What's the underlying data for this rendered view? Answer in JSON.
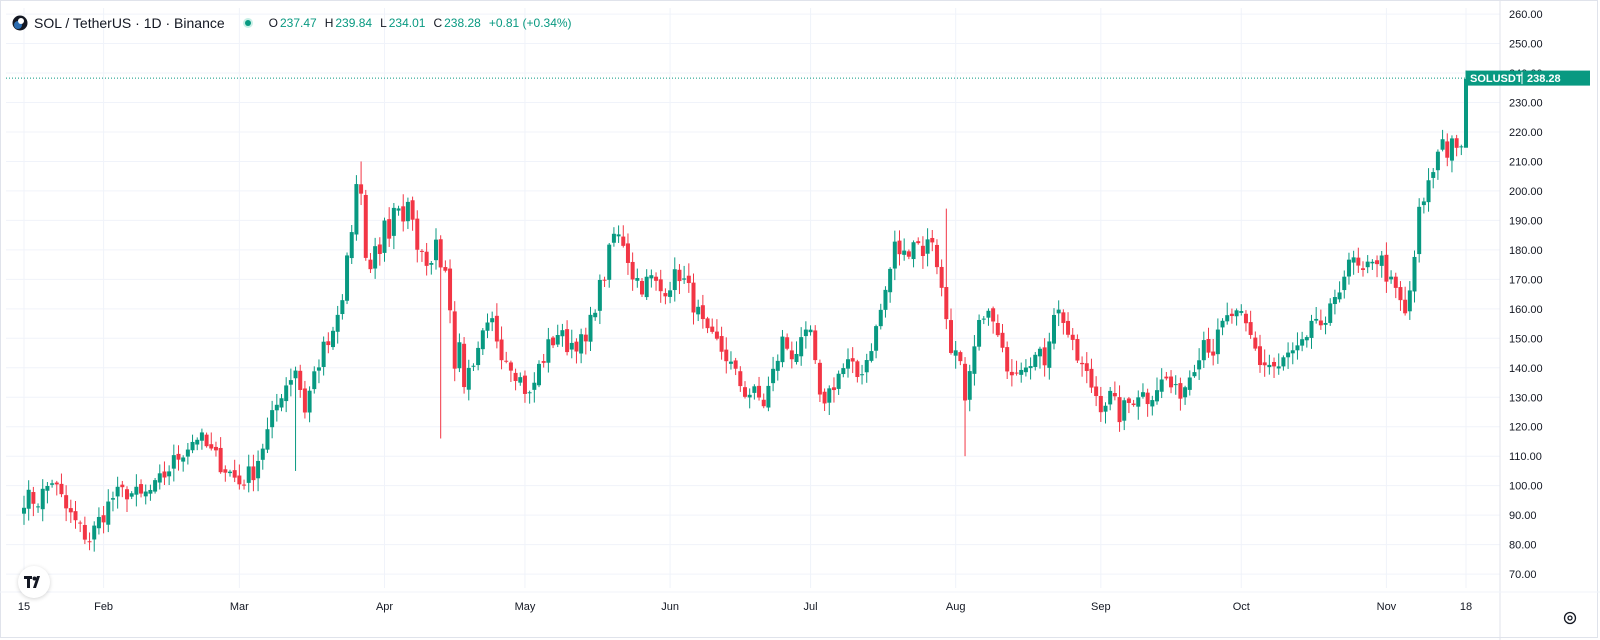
{
  "header": {
    "symbol": "SOL / TetherUS · 1D · Binance",
    "ohlc": [
      {
        "k": "O",
        "v": "237.47"
      },
      {
        "k": "H",
        "v": "239.84"
      },
      {
        "k": "L",
        "v": "234.01"
      },
      {
        "k": "C",
        "v": "238.28"
      }
    ],
    "change": "+0.81 (+0.34%)"
  },
  "price_label": {
    "ticker": "SOLUSDT",
    "value": "238.28"
  },
  "colors": {
    "up": "#089981",
    "down": "#f23645",
    "grid": "#f0f3fa",
    "axis_text": "#131722"
  },
  "icons": {
    "logo": "tradingview-logo-icon",
    "settings": "settings-icon",
    "symbol": "solana-logo-icon"
  },
  "chart_data": {
    "type": "candlestick",
    "title": "SOL / TetherUS · 1D · Binance",
    "ylim": [
      65,
      262
    ],
    "y_ticks": [
      260,
      250,
      240,
      230,
      220,
      210,
      200,
      190,
      180,
      170,
      160,
      150,
      140,
      130,
      120,
      110,
      100,
      90,
      80,
      70
    ],
    "y_tick_labels": [
      "260.00",
      "250.00",
      "240.00",
      "230.00",
      "220.00",
      "210.00",
      "200.00",
      "190.00",
      "180.00",
      "170.00",
      "160.00",
      "150.00",
      "140.00",
      "130.00",
      "120.00",
      "110.00",
      "100.00",
      "90.00",
      "80.00",
      "70.00"
    ],
    "x_tick_labels": [
      "15",
      "Feb",
      "Mar",
      "Apr",
      "May",
      "Jun",
      "Jul",
      "Aug",
      "Sep",
      "Oct",
      "Nov",
      "18"
    ],
    "x_tick_days": [
      0,
      17,
      46,
      77,
      107,
      138,
      168,
      199,
      230,
      260,
      291,
      308
    ],
    "last_price": 238.28,
    "grid": true,
    "anchors": [
      [
        0,
        96
      ],
      [
        3,
        95
      ],
      [
        6,
        102
      ],
      [
        9,
        92
      ],
      [
        12,
        85
      ],
      [
        14,
        82
      ],
      [
        16,
        88
      ],
      [
        19,
        96
      ],
      [
        22,
        98
      ],
      [
        25,
        96
      ],
      [
        28,
        99
      ],
      [
        31,
        106
      ],
      [
        34,
        112
      ],
      [
        37,
        117
      ],
      [
        40,
        111
      ],
      [
        43,
        106
      ],
      [
        46,
        101
      ],
      [
        49,
        105
      ],
      [
        52,
        118
      ],
      [
        55,
        132
      ],
      [
        58,
        140
      ],
      [
        60,
        126
      ],
      [
        62,
        138
      ],
      [
        64,
        146
      ],
      [
        66,
        150
      ],
      [
        67,
        157
      ],
      [
        68,
        162
      ],
      [
        69,
        178
      ],
      [
        70,
        186
      ],
      [
        71,
        201
      ],
      [
        72,
        196
      ],
      [
        73,
        178
      ],
      [
        74,
        172
      ],
      [
        75,
        183
      ],
      [
        76,
        178
      ],
      [
        77,
        191
      ],
      [
        78,
        185
      ],
      [
        79,
        195
      ],
      [
        80,
        192
      ],
      [
        81,
        187
      ],
      [
        82,
        199
      ],
      [
        83,
        188
      ],
      [
        84,
        183
      ],
      [
        86,
        177
      ],
      [
        88,
        180
      ],
      [
        90,
        172
      ],
      [
        91,
        162
      ],
      [
        92,
        140
      ],
      [
        93,
        148
      ],
      [
        94,
        136
      ],
      [
        96,
        138
      ],
      [
        98,
        150
      ],
      [
        100,
        155
      ],
      [
        102,
        146
      ],
      [
        104,
        142
      ],
      [
        106,
        136
      ],
      [
        108,
        130
      ],
      [
        110,
        140
      ],
      [
        112,
        147
      ],
      [
        114,
        152
      ],
      [
        116,
        148
      ],
      [
        118,
        149
      ],
      [
        120,
        148
      ],
      [
        122,
        162
      ],
      [
        124,
        172
      ],
      [
        126,
        185
      ],
      [
        128,
        183
      ],
      [
        130,
        172
      ],
      [
        132,
        168
      ],
      [
        134,
        170
      ],
      [
        136,
        166
      ],
      [
        138,
        169
      ],
      [
        140,
        172
      ],
      [
        142,
        166
      ],
      [
        144,
        158
      ],
      [
        146,
        150
      ],
      [
        148,
        148
      ],
      [
        150,
        144
      ],
      [
        152,
        137
      ],
      [
        154,
        132
      ],
      [
        156,
        131
      ],
      [
        158,
        128
      ],
      [
        160,
        138
      ],
      [
        162,
        149
      ],
      [
        164,
        145
      ],
      [
        166,
        147
      ],
      [
        168,
        152
      ],
      [
        170,
        128
      ],
      [
        172,
        132
      ],
      [
        174,
        138
      ],
      [
        176,
        141
      ],
      [
        178,
        137
      ],
      [
        180,
        143
      ],
      [
        182,
        153
      ],
      [
        184,
        166
      ],
      [
        186,
        181
      ],
      [
        188,
        178
      ],
      [
        190,
        184
      ],
      [
        192,
        180
      ],
      [
        194,
        184
      ],
      [
        195,
        176
      ],
      [
        196,
        166
      ],
      [
        198,
        148
      ],
      [
        200,
        140
      ],
      [
        201,
        126
      ],
      [
        203,
        146
      ],
      [
        205,
        160
      ],
      [
        207,
        155
      ],
      [
        209,
        144
      ],
      [
        211,
        140
      ],
      [
        213,
        142
      ],
      [
        215,
        144
      ],
      [
        218,
        143
      ],
      [
        220,
        160
      ],
      [
        222,
        157
      ],
      [
        224,
        146
      ],
      [
        226,
        140
      ],
      [
        228,
        134
      ],
      [
        230,
        128
      ],
      [
        232,
        130
      ],
      [
        234,
        124
      ],
      [
        236,
        128
      ],
      [
        238,
        132
      ],
      [
        240,
        130
      ],
      [
        242,
        134
      ],
      [
        244,
        136
      ],
      [
        246,
        131
      ],
      [
        248,
        134
      ],
      [
        250,
        142
      ],
      [
        252,
        150
      ],
      [
        254,
        146
      ],
      [
        256,
        154
      ],
      [
        258,
        158
      ],
      [
        260,
        156
      ],
      [
        262,
        150
      ],
      [
        264,
        142
      ],
      [
        266,
        141
      ],
      [
        268,
        140
      ],
      [
        270,
        144
      ],
      [
        272,
        146
      ],
      [
        274,
        148
      ],
      [
        276,
        157
      ],
      [
        278,
        152
      ],
      [
        280,
        165
      ],
      [
        282,
        172
      ],
      [
        284,
        176
      ],
      [
        286,
        170
      ],
      [
        288,
        178
      ],
      [
        290,
        176
      ],
      [
        292,
        168
      ],
      [
        294,
        162
      ],
      [
        295,
        157
      ],
      [
        296,
        166
      ],
      [
        297,
        178
      ],
      [
        298,
        192
      ],
      [
        299,
        196
      ],
      [
        300,
        201
      ],
      [
        301,
        208
      ],
      [
        302,
        212
      ],
      [
        303,
        218
      ],
      [
        304,
        212
      ],
      [
        305,
        220
      ],
      [
        306,
        214
      ],
      [
        307,
        217
      ],
      [
        308,
        238
      ]
    ]
  }
}
